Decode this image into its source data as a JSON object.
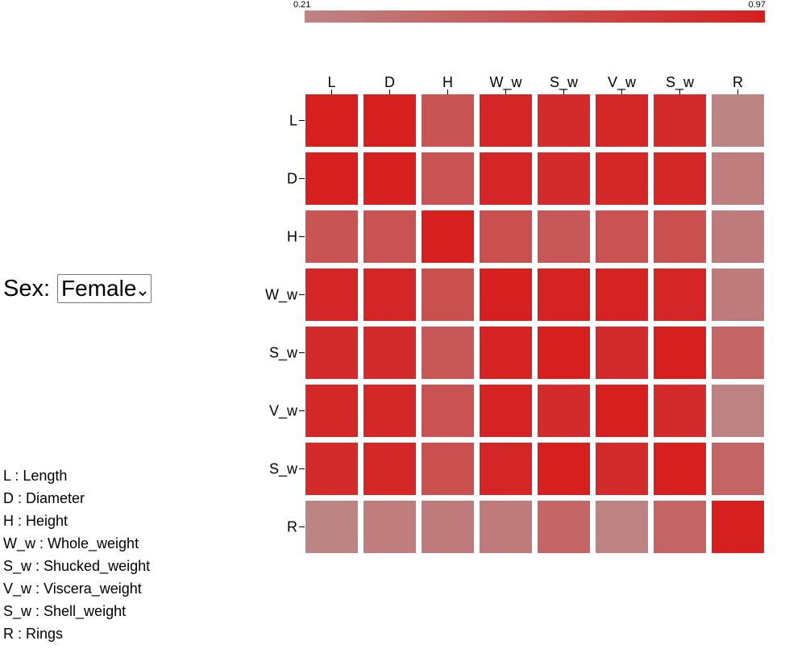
{
  "filter": {
    "label": "Sex:",
    "selected": "Female"
  },
  "colors": {
    "low": "#bd8484",
    "high": "#d61f1f"
  },
  "legend": [
    "L : Length",
    "D : Diameter",
    "H : Height",
    "W_w : Whole_weight",
    "S_w : Shucked_weight",
    "V_w : Viscera_weight",
    "S_w : Shell_weight",
    "R : Rings"
  ],
  "chart_data": {
    "type": "heatmap",
    "colorbar": {
      "min_label": "0.21",
      "max_label": "0.97",
      "min": 0.21,
      "max": 0.97
    },
    "x_labels": [
      "L",
      "D",
      "H",
      "W_w",
      "S_w",
      "V_w",
      "S_w",
      "R"
    ],
    "y_labels": [
      "L",
      "D",
      "H",
      "W_w",
      "S_w",
      "V_w",
      "S_w",
      "R"
    ],
    "values": [
      [
        0.97,
        0.96,
        0.57,
        0.92,
        0.88,
        0.9,
        0.88,
        0.21
      ],
      [
        0.96,
        0.97,
        0.58,
        0.92,
        0.88,
        0.9,
        0.9,
        0.26
      ],
      [
        0.57,
        0.58,
        0.97,
        0.6,
        0.55,
        0.59,
        0.6,
        0.28
      ],
      [
        0.92,
        0.92,
        0.6,
        0.97,
        0.94,
        0.94,
        0.92,
        0.28
      ],
      [
        0.88,
        0.88,
        0.55,
        0.94,
        0.97,
        0.88,
        0.96,
        0.44
      ],
      [
        0.9,
        0.9,
        0.59,
        0.94,
        0.88,
        0.97,
        0.88,
        0.22
      ],
      [
        0.88,
        0.9,
        0.6,
        0.92,
        0.96,
        0.88,
        0.97,
        0.45
      ],
      [
        0.21,
        0.26,
        0.28,
        0.28,
        0.44,
        0.22,
        0.45,
        0.97
      ]
    ]
  }
}
